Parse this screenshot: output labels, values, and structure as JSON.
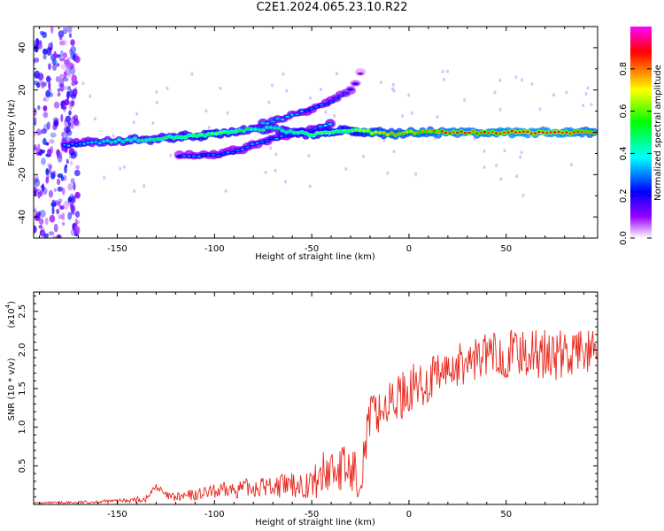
{
  "title": "C2E1.2024.065.23.10.R22",
  "chart_data": [
    {
      "type": "heatmap",
      "xlabel": "Height of straight line (km)",
      "ylabel": "Frequency (Hz)",
      "xlim": [
        -193,
        97
      ],
      "ylim": [
        -50,
        50
      ],
      "xticks": [
        -150,
        -100,
        -50,
        0,
        50
      ],
      "yticks": [
        -40,
        -20,
        0,
        20,
        40
      ],
      "colorbar": {
        "label": "Normalized spectral amplitude",
        "range": [
          0.0,
          1.0
        ],
        "ticks": [
          "0.0",
          "0.2",
          "0.4",
          "0.6",
          "0.8"
        ],
        "colormap": [
          "#ff00ff",
          "#ff0000",
          "#ffff00",
          "#00ff00",
          "#00ffff",
          "#0000ff",
          "#9900ff",
          "#ffffff"
        ]
      },
      "ridge": {
        "x": [
          -177,
          -165,
          -150,
          -130,
          -115,
          -100,
          -85,
          -70,
          -60,
          -50,
          -40,
          -30,
          -20,
          -10,
          0,
          10,
          20,
          40,
          60,
          80,
          95
        ],
        "frequency": [
          -6,
          -5,
          -4,
          -3,
          -2,
          -1,
          1,
          2,
          0,
          -1,
          0,
          1,
          0,
          -1,
          0,
          0,
          0,
          0,
          0,
          0,
          0
        ],
        "amplitude": [
          0.3,
          0.35,
          0.45,
          0.5,
          0.55,
          0.6,
          0.5,
          0.45,
          0.5,
          0.55,
          0.55,
          0.6,
          0.7,
          0.75,
          0.75,
          0.8,
          0.85,
          0.85,
          0.9,
          0.9,
          0.8
        ]
      },
      "upper_branch": {
        "x": [
          -75,
          -60,
          -50,
          -40,
          -32,
          -28,
          -25
        ],
        "frequency": [
          4,
          8,
          11,
          15,
          19,
          22,
          28
        ],
        "amplitude": [
          0.4,
          0.35,
          0.3,
          0.3,
          0.25,
          0.2,
          0.1
        ]
      },
      "lower_branch": {
        "x": [
          -118,
          -110,
          -100,
          -90,
          -80,
          -70,
          -60,
          -50,
          -40
        ],
        "frequency": [
          -11,
          -11,
          -11,
          -9,
          -6,
          -3,
          -1,
          1,
          4
        ],
        "amplitude": [
          0.25,
          0.3,
          0.3,
          0.3,
          0.3,
          0.3,
          0.3,
          0.35,
          0.35
        ]
      },
      "noise_region": {
        "x_range": [
          -193,
          -170
        ],
        "frequency_range": [
          -50,
          50
        ],
        "amplitude": 0.3
      }
    },
    {
      "type": "line",
      "xlabel": "Height of straight line (km)",
      "ylabel": "SNR (10 * v/v)",
      "multiplier_label": "(x10",
      "multiplier_exp": "4",
      "xlim": [
        -193,
        97
      ],
      "ylim": [
        0,
        2.75
      ],
      "xticks": [
        -150,
        -100,
        -50,
        0,
        50
      ],
      "yticks": [
        0.5,
        1.0,
        1.5,
        2.0,
        2.5
      ],
      "line_color": "#e8281e",
      "envelope": {
        "x": [
          -193,
          -170,
          -150,
          -135,
          -130,
          -125,
          -120,
          -100,
          -80,
          -60,
          -50,
          -40,
          -30,
          -25,
          -22,
          -20,
          -10,
          0,
          10,
          20,
          30,
          40,
          50,
          60,
          70,
          80,
          90,
          97
        ],
        "y": [
          0.02,
          0.03,
          0.05,
          0.08,
          0.25,
          0.12,
          0.1,
          0.18,
          0.25,
          0.28,
          0.3,
          0.55,
          0.5,
          0.45,
          0.9,
          1.2,
          1.35,
          1.55,
          1.65,
          1.8,
          1.9,
          2.0,
          2.0,
          2.05,
          2.0,
          2.0,
          2.05,
          2.0
        ]
      },
      "spread": {
        "x": [
          -193,
          -150,
          -120,
          -80,
          -60,
          -50,
          -40,
          -30,
          -20,
          -10,
          0,
          20,
          40,
          60,
          80,
          97
        ],
        "y": [
          0.02,
          0.04,
          0.1,
          0.2,
          0.25,
          0.3,
          0.6,
          0.5,
          0.45,
          0.45,
          0.5,
          0.45,
          0.45,
          0.5,
          0.5,
          0.45
        ]
      }
    }
  ]
}
